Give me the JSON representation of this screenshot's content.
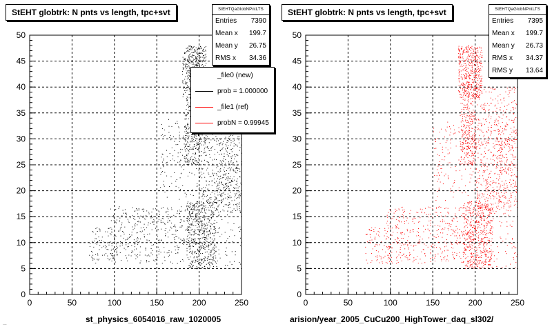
{
  "colors": {
    "new": "#000000",
    "ref": "#ff0000",
    "axis": "#000000",
    "grid": "#000000"
  },
  "panels": [
    {
      "title": "StEHT globtrk: N pnts vs length, tpc+svt",
      "xtitle": "st_physics_6054016_raw_1020005",
      "stats": {
        "name": "StEHTQaGlobNPntLTS",
        "rows": [
          {
            "label": "Entries",
            "value": "7390"
          },
          {
            "label": "Mean x",
            "value": "199.7"
          },
          {
            "label": "Mean y",
            "value": "26.75"
          },
          {
            "label": "RMS x",
            "value": "34.36"
          }
        ]
      },
      "legend": [
        {
          "label": "_file0 (new)",
          "color": ""
        },
        {
          "label": "prob = 1.000000",
          "color": "#000000"
        },
        {
          "label": "_file1 (ref)",
          "color": "#ff0000"
        },
        {
          "label": "probN = 0.99945",
          "color": "#ff0000"
        }
      ]
    },
    {
      "title": "StEHT globtrk: N pnts vs length, tpc+svt",
      "xtitle": "arision/year_2005_CuCu200_HighTower_daq_sl302/",
      "stats": {
        "name": "StEHTQaGlobNPntLTS",
        "rows": [
          {
            "label": "Entries",
            "value": "7395"
          },
          {
            "label": "Mean x",
            "value": "199.7"
          },
          {
            "label": "Mean y",
            "value": "26.73"
          },
          {
            "label": "RMS x",
            "value": "34.37"
          },
          {
            "label": "RMS y",
            "value": "13.64"
          }
        ]
      }
    }
  ],
  "corner_note": "...",
  "chart_data": [
    {
      "type": "scatter",
      "title": "StEHT globtrk: N pnts vs length, tpc+svt",
      "xlabel": "st_physics_6054016_raw_1020005",
      "ylabel": "",
      "xlim": [
        0,
        250
      ],
      "ylim": [
        0,
        50
      ],
      "xticks": [
        0,
        50,
        100,
        150,
        200,
        250
      ],
      "yticks": [
        0,
        5,
        10,
        15,
        20,
        25,
        30,
        35,
        40,
        45,
        50
      ],
      "grid": true,
      "point_color": "#000000",
      "series": [
        {
          "name": "_file0 (new)",
          "clusters": [
            {
              "x": [
                180,
                208
              ],
              "y": [
                38,
                48
              ],
              "weight": 18
            },
            {
              "x": [
                182,
                200
              ],
              "y": [
                25,
                38
              ],
              "weight": 10
            },
            {
              "x": [
                185,
                220
              ],
              "y": [
                5,
                18
              ],
              "weight": 22
            },
            {
              "x": [
                200,
                250
              ],
              "y": [
                16,
                40
              ],
              "weight": 18
            },
            {
              "x": [
                95,
                185
              ],
              "y": [
                6,
                17
              ],
              "weight": 14
            },
            {
              "x": [
                70,
                100
              ],
              "y": [
                6,
                13
              ],
              "weight": 3
            },
            {
              "x": [
                150,
                250
              ],
              "y": [
                18,
                34
              ],
              "weight": 10
            },
            {
              "x": [
                220,
                250
              ],
              "y": [
                5,
                30
              ],
              "weight": 5
            }
          ],
          "entries": 7390,
          "mean_x": 199.7,
          "mean_y": 26.75,
          "rms_x": 34.36
        }
      ]
    },
    {
      "type": "scatter",
      "title": "StEHT globtrk: N pnts vs length, tpc+svt",
      "xlabel": "arision/year_2005_CuCu200_HighTower_daq_sl302/",
      "ylabel": "",
      "xlim": [
        0,
        250
      ],
      "ylim": [
        0,
        50
      ],
      "xticks": [
        0,
        50,
        100,
        150,
        200,
        250
      ],
      "yticks": [
        0,
        5,
        10,
        15,
        20,
        25,
        30,
        35,
        40,
        45,
        50
      ],
      "grid": true,
      "point_color": "#ff0000",
      "series": [
        {
          "name": "_file1 (ref)",
          "clusters": [
            {
              "x": [
                180,
                208
              ],
              "y": [
                38,
                48
              ],
              "weight": 18
            },
            {
              "x": [
                182,
                200
              ],
              "y": [
                25,
                38
              ],
              "weight": 10
            },
            {
              "x": [
                185,
                220
              ],
              "y": [
                5,
                18
              ],
              "weight": 22
            },
            {
              "x": [
                200,
                250
              ],
              "y": [
                16,
                40
              ],
              "weight": 18
            },
            {
              "x": [
                95,
                185
              ],
              "y": [
                6,
                17
              ],
              "weight": 14
            },
            {
              "x": [
                70,
                100
              ],
              "y": [
                6,
                13
              ],
              "weight": 3
            },
            {
              "x": [
                150,
                250
              ],
              "y": [
                18,
                34
              ],
              "weight": 10
            },
            {
              "x": [
                220,
                250
              ],
              "y": [
                5,
                30
              ],
              "weight": 5
            }
          ],
          "entries": 7395,
          "mean_x": 199.7,
          "mean_y": 26.73,
          "rms_x": 34.37,
          "rms_y": 13.64
        }
      ]
    }
  ]
}
